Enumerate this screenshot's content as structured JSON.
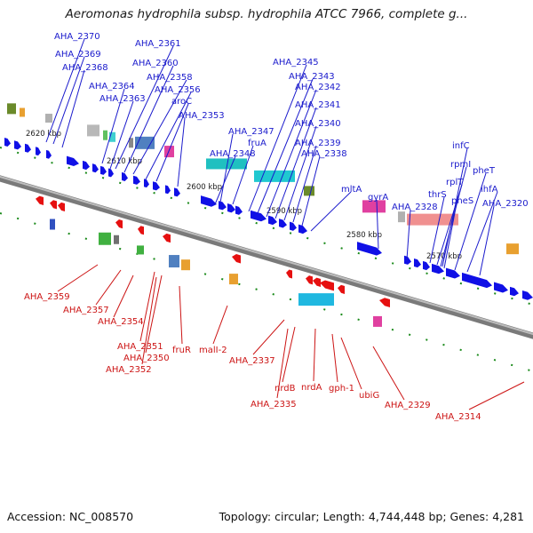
{
  "header": {
    "title": "Aeromonas hydrophila subsp. hydrophila ATCC 7966, complete g..."
  },
  "footer": {
    "accession": "Accession: NC_008570",
    "summary": "Topology: circular; Length: 4,744,448 bp; Genes: 4,281"
  },
  "ticks": [
    "2620 kbp",
    "2610 kbp",
    "2600 kbp",
    "2590 kbp",
    "2580 kbp",
    "2570 kbp"
  ],
  "top_genes": [
    "AHA_2370",
    "AHA_2369",
    "AHA_2368",
    "AHA_2364",
    "AHA_2363",
    "AHA_2361",
    "AHA_2360",
    "AHA_2358",
    "AHA_2356",
    "aroC",
    "AHA_2353",
    "AHA_2347",
    "fruA",
    "AHA_2348",
    "AHA_2345",
    "AHA_2343",
    "AHA_2342",
    "AHA_2341",
    "AHA_2340",
    "AHA_2339",
    "AHA_2338",
    "mltA",
    "gyrA",
    "AHA_2328",
    "thrS",
    "rplT",
    "rpmI",
    "infC",
    "pheS",
    "pheT",
    "ihfA",
    "AHA_2320"
  ],
  "bottom_genes": [
    "AHA_2359",
    "AHA_2357",
    "AHA_2354",
    "AHA_2351",
    "AHA_2350",
    "AHA_2352",
    "fruR",
    "malI-2",
    "AHA_2337",
    "nrdB",
    "AHA_2335",
    "nrdA",
    "gph-1",
    "ubiG",
    "AHA_2329",
    "AHA_2314"
  ],
  "colors": {
    "forward_gene": "#1010e6",
    "reverse_gene": "#e61010",
    "top_label": "#1a1acc",
    "bottom_label": "#cc1414",
    "backbone": "#808080"
  }
}
